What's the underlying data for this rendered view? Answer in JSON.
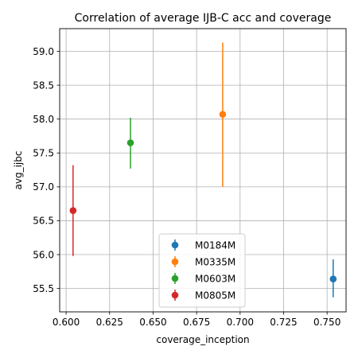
{
  "chart_data": {
    "type": "scatter",
    "title": "Correlation of average IJB-C acc and coverage",
    "xlabel": "coverage_inception",
    "ylabel": "avg_ijbc",
    "xlim": [
      0.5963,
      0.7609
    ],
    "ylim": [
      55.155,
      59.335
    ],
    "xticks": [
      "0.600",
      "0.625",
      "0.650",
      "0.675",
      "0.700",
      "0.725",
      "0.750"
    ],
    "xtick_values": [
      0.6,
      0.625,
      0.65,
      0.675,
      0.7,
      0.725,
      0.75
    ],
    "yticks": [
      "55.5",
      "56.0",
      "56.5",
      "57.0",
      "57.5",
      "58.0",
      "58.5",
      "59.0"
    ],
    "ytick_values": [
      55.5,
      56.0,
      56.5,
      57.0,
      57.5,
      58.0,
      58.5,
      59.0
    ],
    "grid": true,
    "legend_position": "lower-center",
    "series": [
      {
        "name": "M0184M",
        "color": "#1f77b4",
        "x": 0.7535,
        "y": 55.64,
        "y_low": 55.37,
        "y_high": 55.93
      },
      {
        "name": "M0335M",
        "color": "#ff7f0e",
        "x": 0.69,
        "y": 58.07,
        "y_low": 57.0,
        "y_high": 59.13
      },
      {
        "name": "M0603M",
        "color": "#2ca02c",
        "x": 0.637,
        "y": 57.65,
        "y_low": 57.27,
        "y_high": 58.02
      },
      {
        "name": "M0805M",
        "color": "#d62728",
        "x": 0.604,
        "y": 56.65,
        "y_low": 55.98,
        "y_high": 57.32
      }
    ]
  }
}
